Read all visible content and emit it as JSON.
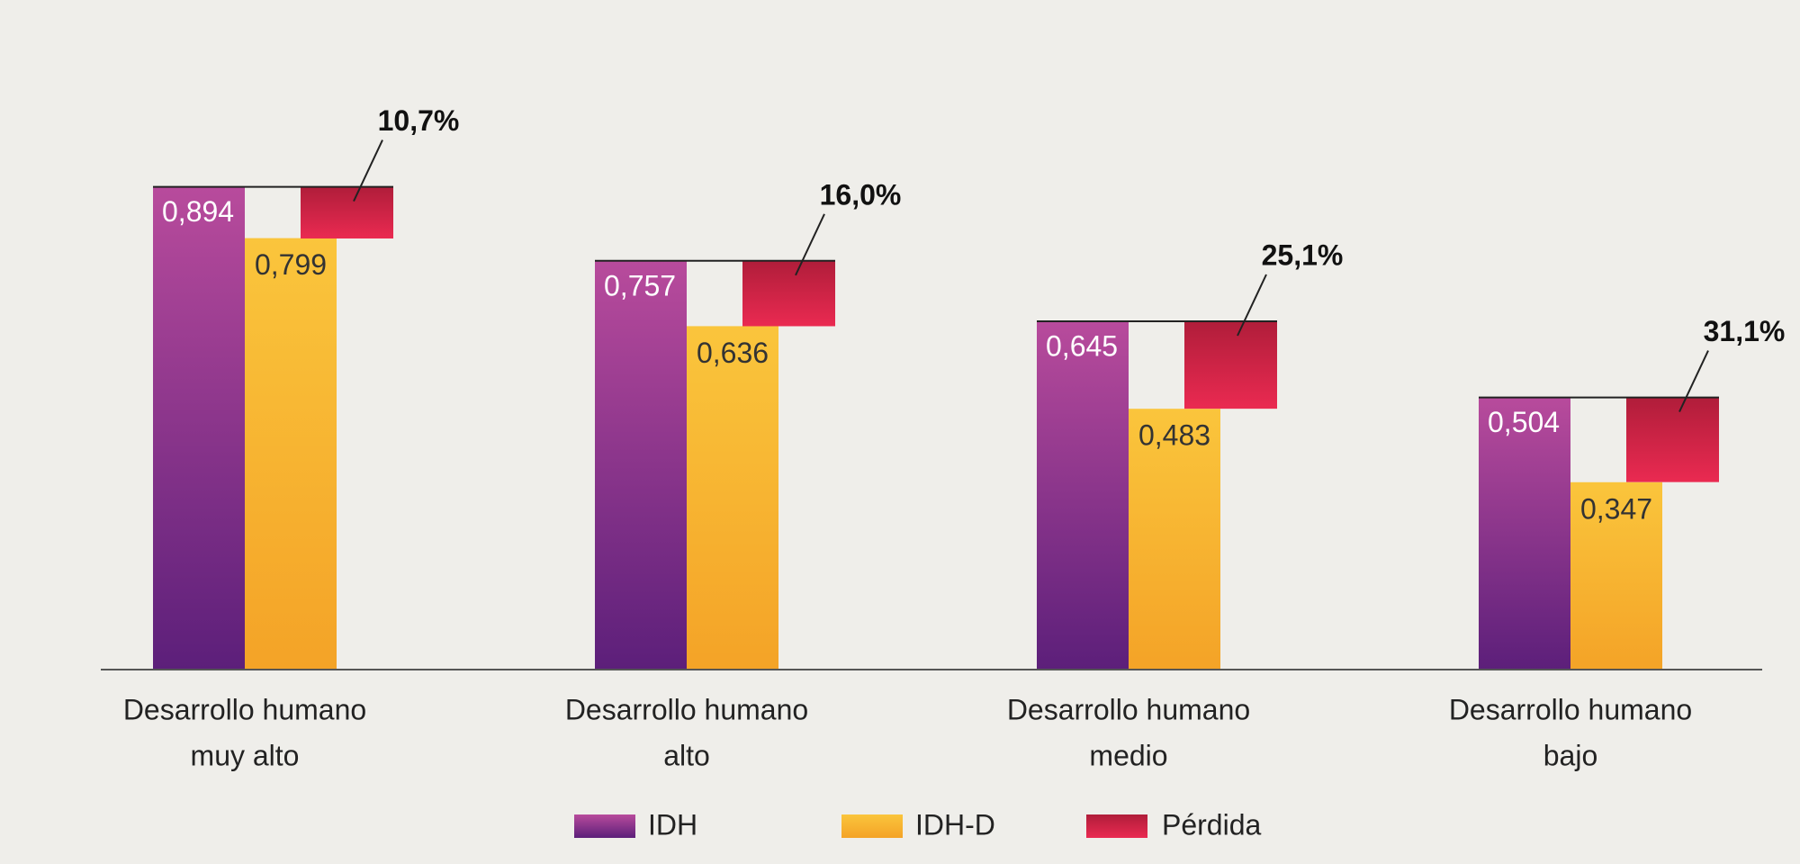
{
  "chart_data": {
    "type": "bar",
    "categories": [
      [
        "Desarrollo humano",
        "muy alto"
      ],
      [
        "Desarrollo humano",
        "alto"
      ],
      [
        "Desarrollo humano",
        "medio"
      ],
      [
        "Desarrollo humano",
        "bajo"
      ]
    ],
    "series": [
      {
        "name": "IDH",
        "color": "#8e3288",
        "values": [
          0.894,
          0.757,
          0.645,
          0.504
        ],
        "value_labels": [
          "0,894",
          "0,757",
          "0,645",
          "0,504"
        ]
      },
      {
        "name": "IDH-D",
        "color": "#f7b42f",
        "values": [
          0.799,
          0.636,
          0.483,
          0.347
        ],
        "value_labels": [
          "0,799",
          "0,636",
          "0,483",
          "0,347"
        ]
      },
      {
        "name": "Pérdida",
        "color": "#d3223f",
        "values": [
          10.7,
          16.0,
          25.1,
          31.1
        ],
        "value_labels": [
          "10,7%",
          "16,0%",
          "25,1%",
          "31,1%"
        ]
      }
    ],
    "ylim": [
      0,
      1
    ]
  }
}
